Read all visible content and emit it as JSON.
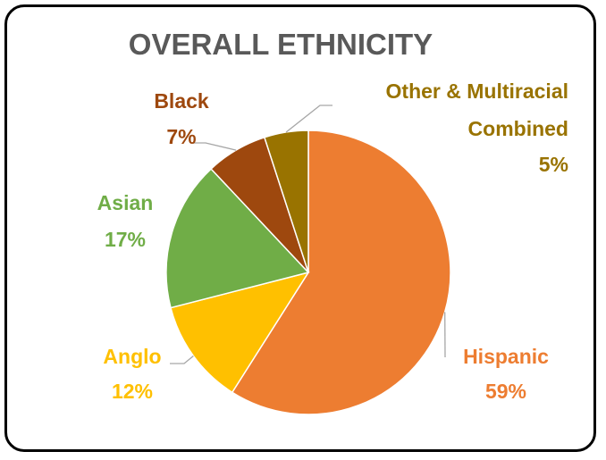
{
  "chart_data": {
    "type": "pie",
    "title": "OVERALL ETHNICITY",
    "slices": [
      {
        "name": "Hispanic",
        "label": "59%",
        "value": 59,
        "color": "#ed7d31"
      },
      {
        "name": "Anglo",
        "label": "12%",
        "value": 12,
        "color": "#ffc000"
      },
      {
        "name": "Asian",
        "label": "17%",
        "value": 17,
        "color": "#70ad47"
      },
      {
        "name": "Black",
        "label": "7%",
        "value": 7,
        "color": "#9e480e"
      },
      {
        "name": "Other & Multiracial Combined",
        "label": "5%",
        "value": 5,
        "color": "#997300"
      }
    ],
    "start_angle_deg": 0,
    "direction": "clockwise",
    "legend": "none"
  }
}
